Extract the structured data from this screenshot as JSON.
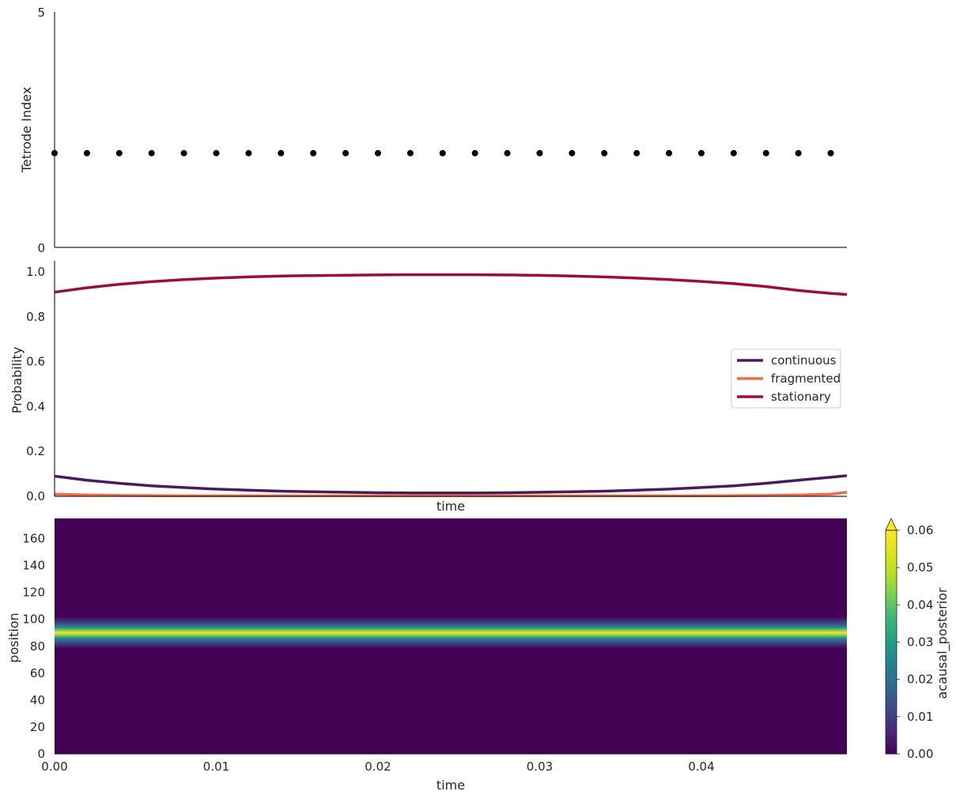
{
  "chart_data": [
    {
      "type": "scatter",
      "ylabel": "Tetrode Index",
      "xlabel": "",
      "xlim": [
        0.0,
        0.049
      ],
      "ylim": [
        0,
        5
      ],
      "yticks": [
        "0",
        "5"
      ],
      "grid": false,
      "marker_color": "#000000",
      "x": [
        0.0,
        0.002,
        0.004,
        0.006,
        0.008,
        0.01,
        0.012,
        0.014,
        0.016,
        0.018,
        0.02,
        0.022,
        0.024,
        0.026,
        0.028,
        0.03,
        0.032,
        0.034,
        0.036,
        0.038,
        0.04,
        0.042,
        0.044,
        0.046,
        0.048
      ],
      "y": [
        2,
        2,
        2,
        2,
        2,
        2,
        2,
        2,
        2,
        2,
        2,
        2,
        2,
        2,
        2,
        2,
        2,
        2,
        2,
        2,
        2,
        2,
        2,
        2,
        2
      ]
    },
    {
      "type": "line",
      "ylabel": "Probability",
      "xlabel": "time",
      "xlim": [
        0.0,
        0.049
      ],
      "ylim": [
        0.0,
        1.05
      ],
      "yticks": [
        "0.0",
        "0.2",
        "0.4",
        "0.6",
        "0.8",
        "1.0"
      ],
      "grid": false,
      "legend_position": "right",
      "x": [
        0.0,
        0.002,
        0.004,
        0.006,
        0.008,
        0.01,
        0.012,
        0.014,
        0.016,
        0.018,
        0.02,
        0.022,
        0.024,
        0.026,
        0.028,
        0.03,
        0.032,
        0.034,
        0.036,
        0.038,
        0.04,
        0.042,
        0.044,
        0.046,
        0.048,
        0.049
      ],
      "series": [
        {
          "name": "continuous",
          "color": "#4a1a5e",
          "values": [
            0.09,
            0.072,
            0.058,
            0.047,
            0.039,
            0.032,
            0.027,
            0.023,
            0.02,
            0.018,
            0.016,
            0.015,
            0.015,
            0.015,
            0.016,
            0.018,
            0.02,
            0.023,
            0.027,
            0.032,
            0.039,
            0.047,
            0.058,
            0.072,
            0.085,
            0.092
          ]
        },
        {
          "name": "fragmented",
          "color": "#f26b44",
          "values": [
            0.01,
            0.006,
            0.004,
            0.003,
            0.002,
            0.002,
            0.002,
            0.002,
            0.002,
            0.002,
            0.002,
            0.002,
            0.002,
            0.002,
            0.002,
            0.002,
            0.002,
            0.002,
            0.002,
            0.002,
            0.002,
            0.003,
            0.004,
            0.006,
            0.01,
            0.018
          ]
        },
        {
          "name": "stationary",
          "color": "#9b0d3d",
          "values": [
            0.91,
            0.93,
            0.945,
            0.957,
            0.966,
            0.973,
            0.978,
            0.982,
            0.984,
            0.986,
            0.987,
            0.988,
            0.988,
            0.988,
            0.987,
            0.985,
            0.982,
            0.978,
            0.973,
            0.966,
            0.958,
            0.948,
            0.935,
            0.918,
            0.905,
            0.9
          ]
        }
      ]
    },
    {
      "type": "heatmap",
      "ylabel": "position",
      "xlabel": "time",
      "xlim": [
        0.0,
        0.049
      ],
      "ylim": [
        0,
        175
      ],
      "xticks": [
        "0.00",
        "0.01",
        "0.02",
        "0.03",
        "0.04"
      ],
      "yticks": [
        "0",
        "20",
        "40",
        "60",
        "80",
        "100",
        "120",
        "140",
        "160"
      ],
      "colormap": "viridis",
      "band_center_position": 90,
      "band_width_sd": 3,
      "peak_value": 0.06,
      "colorbar": {
        "label": "acausal_posterior",
        "range": [
          0.0,
          0.06
        ],
        "ticks": [
          "0.00",
          "0.01",
          "0.02",
          "0.03",
          "0.04",
          "0.05",
          "0.06"
        ],
        "extend": "max"
      }
    }
  ]
}
